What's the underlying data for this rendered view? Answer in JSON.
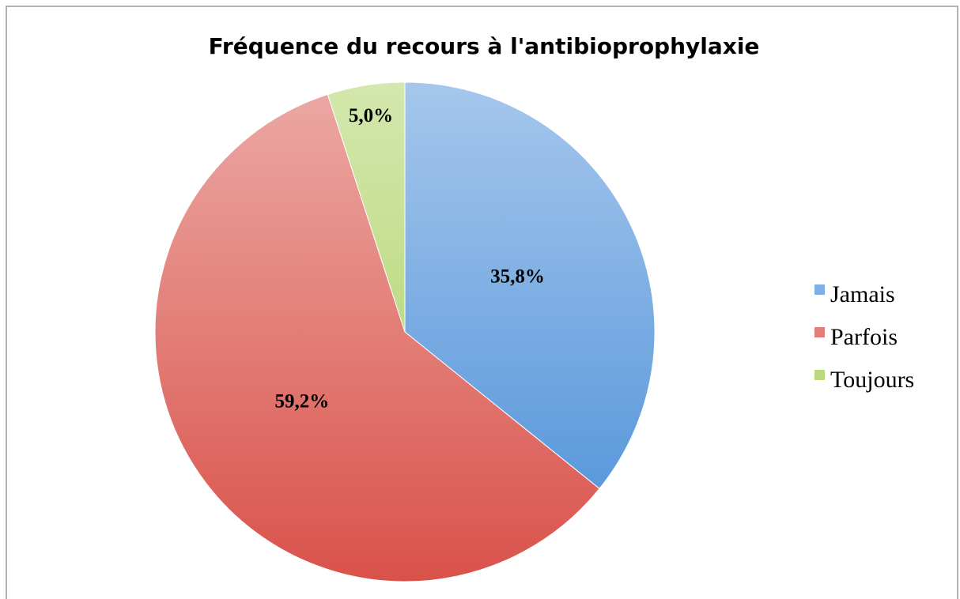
{
  "chart_data": {
    "type": "pie",
    "title": "Fréquence du recours à l'antibioprophylaxie",
    "categories": [
      "Jamais",
      "Parfois",
      "Toujours"
    ],
    "values": [
      35.8,
      59.2,
      5.0
    ],
    "value_labels": [
      "35,8%",
      "59,2%",
      "5,0%"
    ],
    "colors": [
      "#4a8ed8",
      "#d9524a",
      "#a9cf5c"
    ],
    "legend": "right"
  }
}
